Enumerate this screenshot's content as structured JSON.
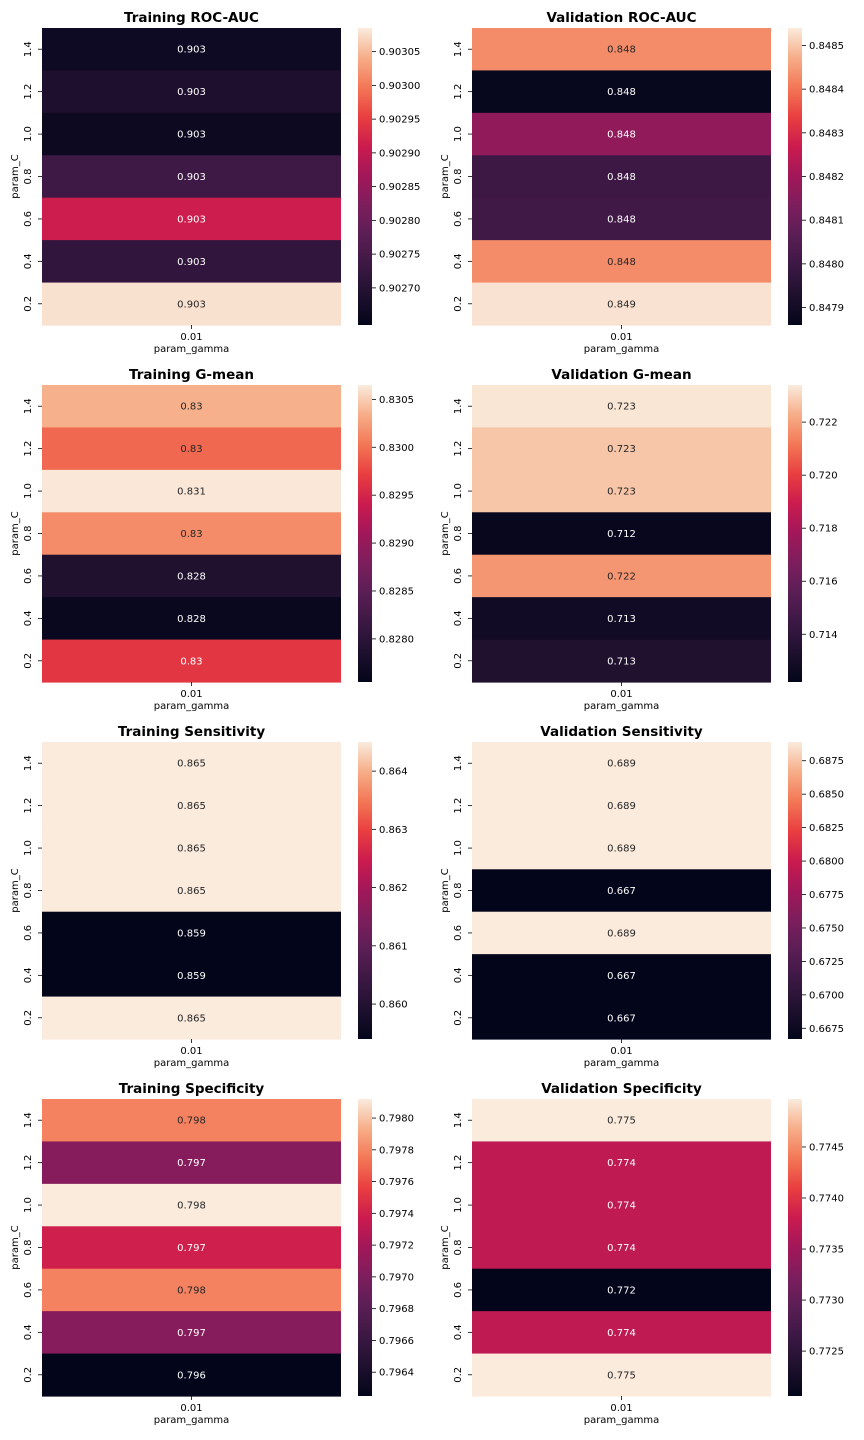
{
  "chart_data": [
    {
      "type": "heatmap",
      "title": "Training ROC-AUC",
      "xlabel": "param_gamma",
      "ylabel": "param_C",
      "x_categories": [
        "0.01"
      ],
      "y_categories": [
        "1.4",
        "1.2",
        "1.0",
        "0.8",
        "0.6",
        "0.4",
        "0.2"
      ],
      "labels": [
        "0.903",
        "0.903",
        "0.903",
        "0.903",
        "0.903",
        "0.903",
        "0.903"
      ],
      "values": [
        0.902665,
        0.902687,
        0.902661,
        0.902738,
        0.902911,
        0.902718,
        0.903078
      ],
      "colorbar_range": [
        0.902645,
        0.903085
      ],
      "colorbar_ticks": [
        "0.90270",
        "0.90275",
        "0.90280",
        "0.90285",
        "0.90290",
        "0.90295",
        "0.90300",
        "0.90305"
      ],
      "colormap": "rocket"
    },
    {
      "type": "heatmap",
      "title": "Validation ROC-AUC",
      "xlabel": "param_gamma",
      "ylabel": "param_C",
      "x_categories": [
        "0.01"
      ],
      "y_categories": [
        "1.4",
        "1.2",
        "1.0",
        "0.8",
        "0.6",
        "0.4",
        "0.2"
      ],
      "labels": [
        "0.848",
        "0.848",
        "0.848",
        "0.848",
        "0.848",
        "0.848",
        "0.849"
      ],
      "values": [
        0.84843,
        0.84787,
        0.84817,
        0.848,
        0.84801,
        0.84843,
        0.84853
      ],
      "colorbar_range": [
        0.84786,
        0.84854
      ],
      "colorbar_ticks": [
        "0.8479",
        "0.8480",
        "0.8481",
        "0.8482",
        "0.8483",
        "0.8484",
        "0.8485"
      ],
      "colormap": "rocket"
    },
    {
      "type": "heatmap",
      "title": "Training G-mean",
      "xlabel": "param_gamma",
      "ylabel": "param_C",
      "x_categories": [
        "0.01"
      ],
      "y_categories": [
        "1.4",
        "1.2",
        "1.0",
        "0.8",
        "0.6",
        "0.4",
        "0.2"
      ],
      "labels": [
        "0.83",
        "0.83",
        "0.831",
        "0.83",
        "0.828",
        "0.828",
        "0.83"
      ],
      "values": [
        0.83035,
        0.82995,
        0.83063,
        0.83015,
        0.82788,
        0.82763,
        0.82965
      ],
      "colorbar_range": [
        0.82755,
        0.83065
      ],
      "colorbar_ticks": [
        "0.8280",
        "0.8285",
        "0.8290",
        "0.8295",
        "0.8300",
        "0.8305"
      ],
      "colormap": "rocket"
    },
    {
      "type": "heatmap",
      "title": "Validation G-mean",
      "xlabel": "param_gamma",
      "ylabel": "param_C",
      "x_categories": [
        "0.01"
      ],
      "y_categories": [
        "1.4",
        "1.2",
        "1.0",
        "0.8",
        "0.6",
        "0.4",
        "0.2"
      ],
      "labels": [
        "0.723",
        "0.723",
        "0.723",
        "0.712",
        "0.722",
        "0.713",
        "0.713"
      ],
      "values": [
        0.7233,
        0.7227,
        0.7227,
        0.7124,
        0.7218,
        0.7128,
        0.7134
      ],
      "colorbar_range": [
        0.7122,
        0.7234
      ],
      "colorbar_ticks": [
        "0.714",
        "0.716",
        "0.718",
        "0.720",
        "0.722"
      ],
      "colormap": "rocket"
    },
    {
      "type": "heatmap",
      "title": "Training Sensitivity",
      "xlabel": "param_gamma",
      "ylabel": "param_C",
      "x_categories": [
        "0.01"
      ],
      "y_categories": [
        "1.4",
        "1.2",
        "1.0",
        "0.8",
        "0.6",
        "0.4",
        "0.2"
      ],
      "labels": [
        "0.865",
        "0.865",
        "0.865",
        "0.865",
        "0.859",
        "0.859",
        "0.865"
      ],
      "values": [
        0.8645,
        0.8645,
        0.8645,
        0.8645,
        0.8594,
        0.8594,
        0.8645
      ],
      "colorbar_range": [
        0.8594,
        0.8645
      ],
      "colorbar_ticks": [
        "0.860",
        "0.861",
        "0.862",
        "0.863",
        "0.864"
      ],
      "colormap": "rocket"
    },
    {
      "type": "heatmap",
      "title": "Validation Sensitivity",
      "xlabel": "param_gamma",
      "ylabel": "param_C",
      "x_categories": [
        "0.01"
      ],
      "y_categories": [
        "1.4",
        "1.2",
        "1.0",
        "0.8",
        "0.6",
        "0.4",
        "0.2"
      ],
      "labels": [
        "0.689",
        "0.689",
        "0.689",
        "0.667",
        "0.689",
        "0.667",
        "0.667"
      ],
      "values": [
        0.6889,
        0.6889,
        0.6889,
        0.6667,
        0.6889,
        0.6667,
        0.6667
      ],
      "colorbar_range": [
        0.6667,
        0.6889
      ],
      "colorbar_ticks": [
        "0.6675",
        "0.6700",
        "0.6725",
        "0.6750",
        "0.6775",
        "0.6800",
        "0.6825",
        "0.6850",
        "0.6875"
      ],
      "colormap": "rocket"
    },
    {
      "type": "heatmap",
      "title": "Training Specificity",
      "xlabel": "param_gamma",
      "ylabel": "param_C",
      "x_categories": [
        "0.01"
      ],
      "y_categories": [
        "1.4",
        "1.2",
        "1.0",
        "0.8",
        "0.6",
        "0.4",
        "0.2"
      ],
      "labels": [
        "0.798",
        "0.797",
        "0.798",
        "0.797",
        "0.798",
        "0.797",
        "0.796"
      ],
      "values": [
        0.79778,
        0.79705,
        0.79812,
        0.7974,
        0.79778,
        0.79705,
        0.79625
      ],
      "colorbar_range": [
        0.79625,
        0.79812
      ],
      "colorbar_ticks": [
        "0.7964",
        "0.7966",
        "0.7968",
        "0.7970",
        "0.7972",
        "0.7974",
        "0.7976",
        "0.7978",
        "0.7980"
      ],
      "colormap": "rocket"
    },
    {
      "type": "heatmap",
      "title": "Validation Specificity",
      "xlabel": "param_gamma",
      "ylabel": "param_C",
      "x_categories": [
        "0.01"
      ],
      "y_categories": [
        "1.4",
        "1.2",
        "1.0",
        "0.8",
        "0.6",
        "0.4",
        "0.2"
      ],
      "labels": [
        "0.775",
        "0.774",
        "0.774",
        "0.774",
        "0.772",
        "0.774",
        "0.775"
      ],
      "values": [
        0.77497,
        0.77372,
        0.77372,
        0.77372,
        0.77206,
        0.77372,
        0.77497
      ],
      "colorbar_range": [
        0.77206,
        0.77497
      ],
      "colorbar_ticks": [
        "0.7725",
        "0.7730",
        "0.7735",
        "0.7740",
        "0.7745"
      ],
      "colormap": "rocket"
    }
  ]
}
